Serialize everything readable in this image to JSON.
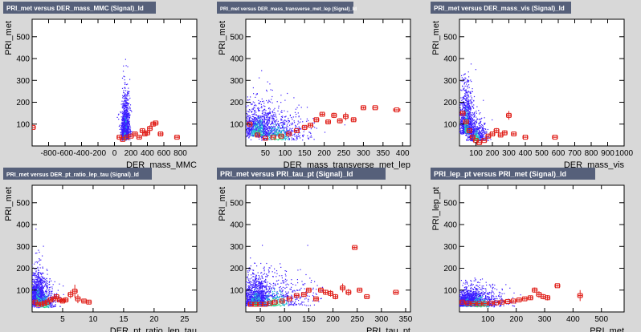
{
  "colors": {
    "title_bg": "#56607a",
    "profile": "#e0201a",
    "heat_low": "#3b1cff",
    "heat_mid": "#22b8d8",
    "heat_high": "#25e08a"
  },
  "chart_data": [
    {
      "type": "scatter",
      "title": "PRI_met versus DER_mass_MMC (Signal)_Id",
      "title_size": 8,
      "xlabel": "DER_mass_MMC",
      "ylabel": "PRI_met",
      "xlim": [
        -1000,
        1000
      ],
      "ylim": [
        0,
        580
      ],
      "xticks": [
        -800,
        -600,
        -400,
        -200,
        0,
        200,
        400,
        600,
        800
      ],
      "yticks": [
        100,
        200,
        300,
        400,
        500
      ],
      "cloud": [
        {
          "x": 130,
          "y": 70,
          "sx": 25,
          "sy": 50,
          "n": 900
        },
        {
          "x": 120,
          "y": 40,
          "sx": 20,
          "sy": 20,
          "n": 400
        }
      ],
      "profile": [
        {
          "x": -990,
          "y": 85,
          "xerr": 10,
          "yerr": 0
        },
        {
          "x": 60,
          "y": 40,
          "xerr": 10,
          "yerr": 5
        },
        {
          "x": 100,
          "y": 30,
          "xerr": 10,
          "yerr": 3
        },
        {
          "x": 150,
          "y": 40,
          "xerr": 10,
          "yerr": 4
        },
        {
          "x": 200,
          "y": 45,
          "xerr": 10,
          "yerr": 5
        },
        {
          "x": 250,
          "y": 55,
          "xerr": 10,
          "yerr": 8
        },
        {
          "x": 300,
          "y": 40,
          "xerr": 10,
          "yerr": 6
        },
        {
          "x": 340,
          "y": 70,
          "xerr": 10,
          "yerr": 10
        },
        {
          "x": 370,
          "y": 55,
          "xerr": 10,
          "yerr": 10
        },
        {
          "x": 400,
          "y": 60,
          "xerr": 10,
          "yerr": 12
        },
        {
          "x": 430,
          "y": 80,
          "xerr": 10,
          "yerr": 14
        },
        {
          "x": 470,
          "y": 100,
          "xerr": 10,
          "yerr": 10
        },
        {
          "x": 500,
          "y": 105,
          "xerr": 10,
          "yerr": 5
        },
        {
          "x": 560,
          "y": 55,
          "xerr": 10,
          "yerr": 10
        },
        {
          "x": 760,
          "y": 40,
          "xerr": 15,
          "yerr": 5
        }
      ]
    },
    {
      "type": "scatter",
      "title": "PRI_met versus DER_mass_transverse_met_lep (Signal)_Id",
      "title_size": 6,
      "xlabel": "DER_mass_transverse_met_lep",
      "ylabel": "PRI_met",
      "xlim": [
        0,
        420
      ],
      "ylim": [
        0,
        580
      ],
      "xticks": [
        50,
        100,
        150,
        200,
        250,
        300,
        350,
        400
      ],
      "yticks": [
        100,
        200,
        300,
        400,
        500
      ],
      "cloud": [
        {
          "x": 30,
          "y": 70,
          "sx": 25,
          "sy": 40,
          "n": 900
        },
        {
          "x": 80,
          "y": 50,
          "sx": 40,
          "sy": 35,
          "n": 600
        }
      ],
      "profile": [
        {
          "x": 10,
          "y": 100,
          "xerr": 3,
          "yerr": 5
        },
        {
          "x": 30,
          "y": 50,
          "xerr": 3,
          "yerr": 3
        },
        {
          "x": 50,
          "y": 35,
          "xerr": 3,
          "yerr": 2
        },
        {
          "x": 70,
          "y": 40,
          "xerr": 3,
          "yerr": 2
        },
        {
          "x": 90,
          "y": 45,
          "xerr": 3,
          "yerr": 3
        },
        {
          "x": 110,
          "y": 55,
          "xerr": 3,
          "yerr": 3
        },
        {
          "x": 130,
          "y": 70,
          "xerr": 3,
          "yerr": 4
        },
        {
          "x": 150,
          "y": 85,
          "xerr": 3,
          "yerr": 5
        },
        {
          "x": 165,
          "y": 95,
          "xerr": 3,
          "yerr": 6
        },
        {
          "x": 180,
          "y": 120,
          "xerr": 3,
          "yerr": 8
        },
        {
          "x": 195,
          "y": 145,
          "xerr": 5,
          "yerr": 10
        },
        {
          "x": 210,
          "y": 110,
          "xerr": 5,
          "yerr": 10
        },
        {
          "x": 225,
          "y": 140,
          "xerr": 5,
          "yerr": 12
        },
        {
          "x": 240,
          "y": 115,
          "xerr": 5,
          "yerr": 12
        },
        {
          "x": 255,
          "y": 135,
          "xerr": 5,
          "yerr": 18
        },
        {
          "x": 275,
          "y": 120,
          "xerr": 5,
          "yerr": 10
        },
        {
          "x": 300,
          "y": 175,
          "xerr": 5,
          "yerr": 5
        },
        {
          "x": 330,
          "y": 175,
          "xerr": 5,
          "yerr": 3
        },
        {
          "x": 385,
          "y": 165,
          "xerr": 8,
          "yerr": 3
        }
      ]
    },
    {
      "type": "scatter",
      "title": "PRI_met versus DER_mass_vis (Signal)_Id",
      "title_size": 8,
      "xlabel": "DER_mass_vis",
      "ylabel": "PRI_met",
      "xlim": [
        0,
        1000
      ],
      "ylim": [
        0,
        580
      ],
      "xticks": [
        100,
        200,
        300,
        400,
        500,
        600,
        700,
        800,
        900,
        1000
      ],
      "yticks": [
        100,
        200,
        300,
        400,
        500
      ],
      "cloud": [
        {
          "x": 40,
          "y": 90,
          "sx": 20,
          "sy": 55,
          "n": 900
        },
        {
          "x": 100,
          "y": 40,
          "sx": 30,
          "sy": 25,
          "n": 500
        }
      ],
      "profile": [
        {
          "x": 20,
          "y": 150,
          "xerr": 5,
          "yerr": 10
        },
        {
          "x": 40,
          "y": 110,
          "xerr": 5,
          "yerr": 8
        },
        {
          "x": 60,
          "y": 70,
          "xerr": 5,
          "yerr": 5
        },
        {
          "x": 80,
          "y": 40,
          "xerr": 5,
          "yerr": 3
        },
        {
          "x": 100,
          "y": 25,
          "xerr": 5,
          "yerr": 2
        },
        {
          "x": 120,
          "y": 15,
          "xerr": 5,
          "yerr": 2
        },
        {
          "x": 150,
          "y": 25,
          "xerr": 5,
          "yerr": 3
        },
        {
          "x": 175,
          "y": 45,
          "xerr": 5,
          "yerr": 6
        },
        {
          "x": 200,
          "y": 55,
          "xerr": 5,
          "yerr": 10
        },
        {
          "x": 225,
          "y": 70,
          "xerr": 8,
          "yerr": 12
        },
        {
          "x": 250,
          "y": 50,
          "xerr": 8,
          "yerr": 10
        },
        {
          "x": 275,
          "y": 60,
          "xerr": 8,
          "yerr": 12
        },
        {
          "x": 300,
          "y": 140,
          "xerr": 8,
          "yerr": 20
        },
        {
          "x": 330,
          "y": 55,
          "xerr": 8,
          "yerr": 5
        },
        {
          "x": 400,
          "y": 40,
          "xerr": 10,
          "yerr": 3
        },
        {
          "x": 580,
          "y": 40,
          "xerr": 15,
          "yerr": 3
        }
      ]
    },
    {
      "type": "scatter",
      "title": "PRI_met versus DER_pt_ratio_lep_tau (Signal)_Id",
      "title_size": 7,
      "xlabel": "DER_pt_ratio_lep_tau",
      "ylabel": "PRI_met",
      "xlim": [
        0,
        27
      ],
      "ylim": [
        0,
        580
      ],
      "xticks": [
        5,
        10,
        15,
        20,
        25
      ],
      "yticks": [
        100,
        200,
        300,
        400,
        500
      ],
      "cloud": [
        {
          "x": 0.9,
          "y": 55,
          "sx": 0.6,
          "sy": 40,
          "n": 1100
        },
        {
          "x": 2.0,
          "y": 40,
          "sx": 1.2,
          "sy": 30,
          "n": 400
        }
      ],
      "profile": [
        {
          "x": 0.5,
          "y": 45,
          "xerr": 0.2,
          "yerr": 2
        },
        {
          "x": 1,
          "y": 35,
          "xerr": 0.2,
          "yerr": 2
        },
        {
          "x": 1.5,
          "y": 35,
          "xerr": 0.2,
          "yerr": 2
        },
        {
          "x": 2,
          "y": 40,
          "xerr": 0.2,
          "yerr": 3
        },
        {
          "x": 2.5,
          "y": 45,
          "xerr": 0.2,
          "yerr": 3
        },
        {
          "x": 3,
          "y": 55,
          "xerr": 0.2,
          "yerr": 4
        },
        {
          "x": 3.5,
          "y": 60,
          "xerr": 0.2,
          "yerr": 5
        },
        {
          "x": 4,
          "y": 70,
          "xerr": 0.2,
          "yerr": 8
        },
        {
          "x": 4.5,
          "y": 55,
          "xerr": 0.2,
          "yerr": 10
        },
        {
          "x": 5,
          "y": 50,
          "xerr": 0.3,
          "yerr": 10
        },
        {
          "x": 5.5,
          "y": 55,
          "xerr": 0.3,
          "yerr": 12
        },
        {
          "x": 6.3,
          "y": 80,
          "xerr": 0.3,
          "yerr": 18
        },
        {
          "x": 7,
          "y": 95,
          "xerr": 0.3,
          "yerr": 30
        },
        {
          "x": 7.5,
          "y": 60,
          "xerr": 0.3,
          "yerr": 20
        },
        {
          "x": 8.5,
          "y": 50,
          "xerr": 0.3,
          "yerr": 10
        },
        {
          "x": 9.3,
          "y": 45,
          "xerr": 0.3,
          "yerr": 10
        }
      ]
    },
    {
      "type": "scatter",
      "title": "PRI_met versus PRI_tau_pt (Signal)_Id",
      "title_size": 9,
      "xlabel": "PRI_tau_pt",
      "ylabel": "PRI_met",
      "xlim": [
        20,
        360
      ],
      "ylim": [
        0,
        580
      ],
      "xticks": [
        50,
        100,
        150,
        200,
        250,
        300,
        350
      ],
      "yticks": [
        100,
        200,
        300,
        400,
        500
      ],
      "cloud": [
        {
          "x": 40,
          "y": 50,
          "sx": 15,
          "sy": 35,
          "n": 1000
        },
        {
          "x": 80,
          "y": 50,
          "sx": 35,
          "sy": 35,
          "n": 600
        }
      ],
      "profile": [
        {
          "x": 30,
          "y": 35,
          "xerr": 2,
          "yerr": 2
        },
        {
          "x": 40,
          "y": 35,
          "xerr": 2,
          "yerr": 2
        },
        {
          "x": 50,
          "y": 35,
          "xerr": 2,
          "yerr": 2
        },
        {
          "x": 60,
          "y": 35,
          "xerr": 2,
          "yerr": 2
        },
        {
          "x": 70,
          "y": 40,
          "xerr": 2,
          "yerr": 2
        },
        {
          "x": 80,
          "y": 45,
          "xerr": 2,
          "yerr": 3
        },
        {
          "x": 95,
          "y": 50,
          "xerr": 3,
          "yerr": 3
        },
        {
          "x": 110,
          "y": 60,
          "xerr": 3,
          "yerr": 4
        },
        {
          "x": 125,
          "y": 75,
          "xerr": 3,
          "yerr": 5
        },
        {
          "x": 140,
          "y": 80,
          "xerr": 3,
          "yerr": 8
        },
        {
          "x": 150,
          "y": 100,
          "xerr": 3,
          "yerr": 10
        },
        {
          "x": 165,
          "y": 60,
          "xerr": 3,
          "yerr": 10
        },
        {
          "x": 175,
          "y": 100,
          "xerr": 4,
          "yerr": 12
        },
        {
          "x": 185,
          "y": 90,
          "xerr": 4,
          "yerr": 12
        },
        {
          "x": 195,
          "y": 85,
          "xerr": 4,
          "yerr": 15
        },
        {
          "x": 205,
          "y": 70,
          "xerr": 4,
          "yerr": 12
        },
        {
          "x": 220,
          "y": 110,
          "xerr": 4,
          "yerr": 20
        },
        {
          "x": 232,
          "y": 90,
          "xerr": 4,
          "yerr": 15
        },
        {
          "x": 245,
          "y": 295,
          "xerr": 4,
          "yerr": 5
        },
        {
          "x": 255,
          "y": 100,
          "xerr": 4,
          "yerr": 5
        },
        {
          "x": 270,
          "y": 70,
          "xerr": 5,
          "yerr": 5
        },
        {
          "x": 330,
          "y": 90,
          "xerr": 5,
          "yerr": 5
        }
      ]
    },
    {
      "type": "scatter",
      "title": "PRI_lep_pt versus PRI_met (Signal)_Id",
      "title_size": 9,
      "xlabel": "PRI_met",
      "ylabel": "PRI_lep_pt",
      "xlim": [
        0,
        580
      ],
      "ylim": [
        0,
        580
      ],
      "xticks": [
        100,
        200,
        300,
        400,
        500
      ],
      "yticks": [
        100,
        200,
        300,
        400,
        500
      ],
      "cloud": [
        {
          "x": 30,
          "y": 40,
          "sx": 25,
          "sy": 20,
          "n": 1000
        },
        {
          "x": 70,
          "y": 40,
          "sx": 45,
          "sy": 25,
          "n": 600
        }
      ],
      "profile": [
        {
          "x": 10,
          "y": 45,
          "xerr": 3,
          "yerr": 2
        },
        {
          "x": 30,
          "y": 40,
          "xerr": 3,
          "yerr": 2
        },
        {
          "x": 50,
          "y": 38,
          "xerr": 3,
          "yerr": 2
        },
        {
          "x": 70,
          "y": 38,
          "xerr": 3,
          "yerr": 2
        },
        {
          "x": 90,
          "y": 38,
          "xerr": 3,
          "yerr": 2
        },
        {
          "x": 110,
          "y": 40,
          "xerr": 3,
          "yerr": 2
        },
        {
          "x": 130,
          "y": 42,
          "xerr": 4,
          "yerr": 3
        },
        {
          "x": 150,
          "y": 45,
          "xerr": 4,
          "yerr": 3
        },
        {
          "x": 170,
          "y": 48,
          "xerr": 4,
          "yerr": 4
        },
        {
          "x": 190,
          "y": 50,
          "xerr": 5,
          "yerr": 5
        },
        {
          "x": 210,
          "y": 55,
          "xerr": 5,
          "yerr": 6
        },
        {
          "x": 230,
          "y": 60,
          "xerr": 5,
          "yerr": 8
        },
        {
          "x": 250,
          "y": 65,
          "xerr": 5,
          "yerr": 10
        },
        {
          "x": 265,
          "y": 100,
          "xerr": 5,
          "yerr": 12
        },
        {
          "x": 280,
          "y": 80,
          "xerr": 5,
          "yerr": 15
        },
        {
          "x": 295,
          "y": 70,
          "xerr": 5,
          "yerr": 12
        },
        {
          "x": 310,
          "y": 65,
          "xerr": 5,
          "yerr": 12
        },
        {
          "x": 345,
          "y": 120,
          "xerr": 8,
          "yerr": 5
        },
        {
          "x": 425,
          "y": 75,
          "xerr": 8,
          "yerr": 25
        }
      ]
    }
  ]
}
